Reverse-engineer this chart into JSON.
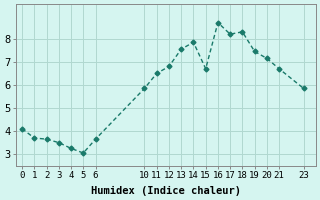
{
  "x": [
    0,
    1,
    2,
    3,
    4,
    5,
    6,
    10,
    11,
    12,
    13,
    14,
    15,
    16,
    17,
    18,
    19,
    20,
    21,
    23
  ],
  "y": [
    4.1,
    3.7,
    3.65,
    3.5,
    3.25,
    3.05,
    3.65,
    5.85,
    6.5,
    6.8,
    7.55,
    7.85,
    6.7,
    8.7,
    8.2,
    8.3,
    7.45,
    7.15,
    6.7,
    5.85
  ],
  "line_color": "#1a7a6a",
  "bg_color": "#d5f5f0",
  "grid_color": "#b0d8d0",
  "xlabel": "Humidex (Indice chaleur)",
  "ylim": [
    2.5,
    9.5
  ],
  "xlim": [
    -0.5,
    24
  ],
  "yticks": [
    3,
    4,
    5,
    6,
    7,
    8
  ],
  "xticks": [
    0,
    1,
    2,
    3,
    4,
    5,
    6,
    10,
    11,
    12,
    13,
    14,
    15,
    16,
    17,
    18,
    19,
    20,
    21,
    23
  ],
  "xtick_labels": [
    "0",
    "1",
    "2",
    "3",
    "4",
    "5",
    "6",
    "10",
    "11",
    "12",
    "13",
    "14",
    "15",
    "16",
    "17",
    "18",
    "19",
    "20",
    "21",
    "23"
  ]
}
